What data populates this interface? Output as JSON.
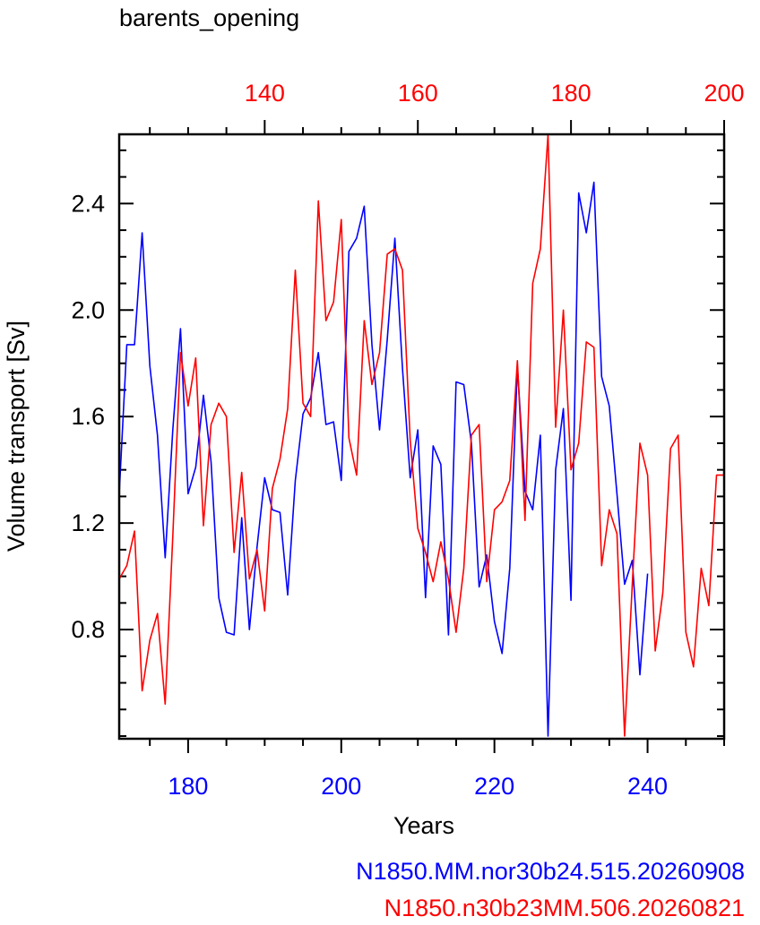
{
  "chart_data": {
    "type": "line",
    "title": "barents_opening",
    "xlabel": "Years",
    "ylabel": "Volume transport [Sv]",
    "ylim": [
      0.39,
      2.66
    ],
    "yticks": [
      0.8,
      1.2,
      1.6,
      2.0,
      2.4
    ],
    "yticklabels": [
      "0.8",
      "1.2",
      "1.6",
      "2.0",
      "2.4"
    ],
    "bottom_axis": {
      "color": "#0000ff",
      "xlim": [
        171,
        250
      ],
      "ticks": [
        180,
        200,
        220,
        240
      ],
      "ticklabels": [
        "180",
        "200",
        "220",
        "240"
      ]
    },
    "top_axis": {
      "color": "#ff0000",
      "xlim": [
        121,
        200
      ],
      "ticks": [
        140,
        160,
        180,
        200
      ],
      "ticklabels": [
        "140",
        "160",
        "180",
        "200"
      ]
    },
    "grid": false,
    "legend_position": "bottom-right",
    "series": [
      {
        "name": "N1850.MM.nor30b24.515.20260908",
        "color": "#0000ff",
        "axis": "bottom",
        "x": [
          171,
          172,
          173,
          174,
          175,
          176,
          177,
          178,
          179,
          180,
          181,
          182,
          183,
          184,
          185,
          186,
          187,
          188,
          189,
          190,
          191,
          192,
          193,
          194,
          195,
          196,
          197,
          198,
          199,
          200,
          201,
          202,
          203,
          204,
          205,
          206,
          207,
          208,
          209,
          210,
          211,
          212,
          213,
          214,
          215,
          216,
          217,
          218,
          219,
          220,
          221,
          222,
          223,
          224,
          225,
          226,
          227,
          228,
          229,
          230,
          231,
          232,
          233,
          234,
          235,
          236,
          237,
          238,
          239,
          240
        ],
        "y": [
          1.31,
          1.87,
          1.87,
          2.29,
          1.79,
          1.53,
          1.07,
          1.55,
          1.93,
          1.31,
          1.41,
          1.68,
          1.43,
          0.92,
          0.79,
          0.78,
          1.22,
          0.8,
          1.11,
          1.37,
          1.25,
          1.24,
          0.93,
          1.36,
          1.61,
          1.67,
          1.84,
          1.57,
          1.58,
          1.36,
          2.22,
          2.27,
          2.39,
          1.87,
          1.55,
          1.89,
          2.27,
          1.78,
          1.37,
          1.55,
          0.92,
          1.49,
          1.42,
          0.78,
          1.73,
          1.72,
          1.5,
          0.96,
          1.08,
          0.83,
          0.71,
          1.03,
          1.79,
          1.32,
          1.25,
          1.53,
          0.4,
          1.4,
          1.63,
          0.91,
          2.44,
          2.29,
          2.48,
          1.75,
          1.64,
          1.31,
          0.97,
          1.06,
          0.63,
          1.01
        ]
      },
      {
        "name": "N1850.n30b23MM.506.20260821",
        "color": "#ff0000",
        "axis": "top",
        "x": [
          121,
          122,
          123,
          124,
          125,
          126,
          127,
          128,
          129,
          130,
          131,
          132,
          133,
          134,
          135,
          136,
          137,
          138,
          139,
          140,
          141,
          142,
          143,
          144,
          145,
          146,
          147,
          148,
          149,
          150,
          151,
          152,
          153,
          154,
          155,
          156,
          157,
          158,
          159,
          160,
          161,
          162,
          163,
          164,
          165,
          166,
          167,
          168,
          169,
          170,
          171,
          172,
          173,
          174,
          175,
          176,
          177,
          178,
          179,
          180,
          181,
          182,
          183,
          184,
          185,
          186,
          187,
          188,
          189,
          190,
          191,
          192,
          193,
          194,
          195,
          196,
          197,
          198,
          199,
          200
        ],
        "y": [
          0.99,
          1.04,
          1.17,
          0.57,
          0.76,
          0.86,
          0.52,
          1.15,
          1.84,
          1.64,
          1.82,
          1.19,
          1.57,
          1.65,
          1.6,
          1.09,
          1.39,
          0.99,
          1.1,
          0.87,
          1.33,
          1.44,
          1.63,
          2.15,
          1.65,
          1.6,
          2.41,
          1.96,
          2.03,
          2.34,
          1.52,
          1.38,
          1.96,
          1.72,
          1.84,
          2.21,
          2.23,
          2.15,
          1.51,
          1.18,
          1.09,
          0.98,
          1.13,
          0.99,
          0.79,
          1.03,
          1.53,
          1.57,
          0.98,
          1.25,
          1.28,
          1.36,
          1.81,
          1.21,
          2.1,
          2.23,
          2.66,
          1.56,
          2.0,
          1.4,
          1.5,
          1.88,
          1.86,
          1.04,
          1.25,
          1.16,
          0.4,
          0.97,
          1.5,
          1.38,
          0.72,
          0.94,
          1.48,
          1.53,
          0.79,
          0.66,
          1.03,
          0.89,
          1.38,
          1.38
        ]
      }
    ]
  }
}
